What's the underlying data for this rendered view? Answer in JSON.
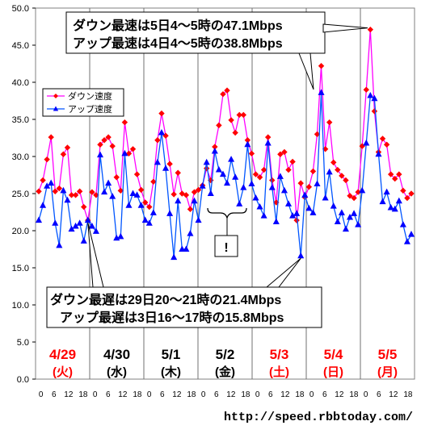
{
  "chart_data": {
    "type": "line",
    "ylim": [
      0,
      50
    ],
    "y_ticks": [
      "0.0",
      "5.0",
      "10.0",
      "15.0",
      "20.0",
      "25.0",
      "30.0",
      "35.0",
      "40.0",
      "45.0",
      "50.0"
    ],
    "x_ticks": [
      "0",
      "6",
      "12",
      "18"
    ],
    "grid": "vertical day separators",
    "days": [
      {
        "date": "4/29",
        "dow": "(火)",
        "color": "#ff0000"
      },
      {
        "date": "4/30",
        "dow": "(水)",
        "color": "#000000"
      },
      {
        "date": "5/1",
        "dow": "(木)",
        "color": "#000000"
      },
      {
        "date": "5/2",
        "dow": "(金)",
        "color": "#000000"
      },
      {
        "date": "5/3",
        "dow": "(土)",
        "color": "#ff0000"
      },
      {
        "date": "5/4",
        "dow": "(日)",
        "color": "#ff0000"
      },
      {
        "date": "5/5",
        "dow": "(月)",
        "color": "#ff0000"
      }
    ],
    "legend_position": "top-left",
    "series": [
      {
        "name": "ダウン速度",
        "color": "#ff00ff",
        "marker": "diamond",
        "values": [
          25.3,
          26.8,
          29.6,
          32.6,
          25.3,
          25.7,
          30.3,
          31.2,
          24.8,
          24.8,
          25.3,
          23.2,
          21.4,
          25.2,
          24.8,
          31.6,
          32.2,
          32.6,
          31.4,
          27.2,
          25.4,
          34.6,
          30.4,
          31.0,
          27.6,
          25.5,
          23.8,
          23.2,
          26.6,
          32.2,
          35.8,
          32.8,
          29.0,
          24.9,
          27.8,
          25.0,
          24.8,
          22.9,
          25.2,
          25.5,
          26.1,
          28.4,
          26.8,
          31.3,
          34.2,
          38.4,
          38.9,
          34.9,
          33.2,
          35.6,
          35.6,
          32.2,
          30.4,
          27.6,
          27.2,
          28.2,
          32.6,
          26.8,
          23.8,
          30.3,
          30.6,
          28.2,
          29.3,
          21.4,
          26.4,
          24.5,
          25.9,
          28.0,
          33.0,
          42.2,
          31.0,
          34.6,
          29.2,
          28.2,
          27.4,
          26.8,
          24.7,
          24.4,
          25.2,
          31.4,
          39.0,
          47.1,
          36.1,
          30.6,
          32.4,
          31.6,
          27.6,
          27.0,
          27.6,
          25.4,
          24.4,
          25.0
        ]
      },
      {
        "name": "アップ速度",
        "color": "#0055ff",
        "marker": "triangle",
        "values": [
          21.4,
          23.4,
          26.0,
          26.4,
          21.0,
          18.0,
          25.4,
          24.1,
          20.2,
          20.6,
          21.0,
          18.6,
          21.4,
          20.6,
          19.9,
          30.2,
          25.2,
          26.4,
          24.6,
          19.0,
          19.2,
          30.4,
          23.4,
          25.0,
          24.8,
          23.4,
          21.4,
          21.0,
          22.4,
          29.2,
          33.2,
          28.4,
          22.3,
          16.4,
          24.0,
          17.5,
          17.5,
          19.6,
          24.0,
          21.4,
          26.0,
          29.2,
          25.0,
          30.7,
          28.2,
          27.6,
          26.4,
          29.6,
          27.2,
          23.6,
          25.8,
          31.6,
          26.3,
          24.4,
          23.2,
          22.0,
          31.8,
          25.8,
          21.2,
          27.3,
          25.4,
          23.6,
          22.0,
          22.3,
          16.6,
          24.8,
          23.0,
          22.4,
          26.3,
          38.6,
          24.4,
          27.9,
          23.3,
          21.2,
          22.4,
          20.2,
          21.8,
          22.3,
          20.8,
          25.4,
          31.8,
          38.2,
          37.8,
          30.3,
          23.9,
          25.2,
          23.1,
          22.9,
          24.0,
          20.8,
          18.5,
          19.5
        ]
      }
    ]
  },
  "annotations": {
    "max_down": "ダウン最速は5日4～5時の47.1Mbps",
    "max_up": "アップ最速は4日4～5時の38.8Mbps",
    "min_down": "ダウン最遅は29日20～21時の21.4Mbps",
    "min_up": "アップ最遅は3日16～17時の15.8Mbps",
    "exclamation": "!"
  },
  "credit": "http://speed.rbbtoday.com/"
}
